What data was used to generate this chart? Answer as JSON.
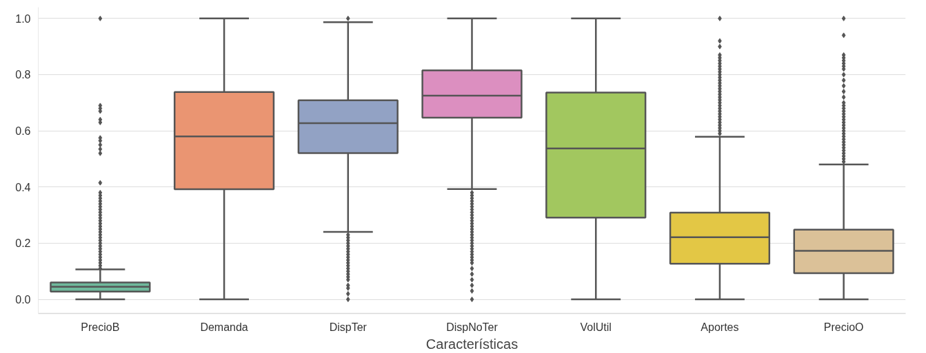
{
  "chart_data": {
    "type": "box",
    "xlabel": "Características",
    "categories": [
      "PrecioB",
      "Demanda",
      "DispTer",
      "DispNoTer",
      "VolUtil",
      "Aportes",
      "PrecioO"
    ],
    "colors": [
      "#6fb99c",
      "#ea9572",
      "#92a2c4",
      "#dc8fc0",
      "#a2c75f",
      "#e3c745",
      "#dbc198"
    ],
    "boxes": [
      {
        "low": 0.0,
        "q1": 0.028,
        "median": 0.045,
        "q3": 0.06,
        "high": 0.107,
        "outliers": [
          1.0,
          0.69,
          0.68,
          0.67,
          0.64,
          0.63,
          0.575,
          0.565,
          0.55,
          0.535,
          0.52,
          0.415,
          0.38,
          0.37,
          0.36,
          0.35,
          0.34,
          0.33,
          0.32,
          0.31,
          0.3,
          0.29,
          0.28,
          0.27,
          0.26,
          0.25,
          0.24,
          0.23,
          0.22,
          0.21,
          0.2,
          0.19,
          0.18,
          0.17,
          0.16,
          0.15,
          0.14,
          0.13,
          0.12,
          0.11
        ]
      },
      {
        "low": 0.0,
        "q1": 0.392,
        "median": 0.58,
        "q3": 0.738,
        "high": 1.0
      },
      {
        "low": 0.24,
        "q1": 0.521,
        "median": 0.627,
        "q3": 0.709,
        "high": 0.987,
        "outliers": [
          1.0,
          0.23,
          0.22,
          0.21,
          0.2,
          0.19,
          0.18,
          0.17,
          0.16,
          0.15,
          0.14,
          0.13,
          0.12,
          0.11,
          0.1,
          0.09,
          0.08,
          0.07,
          0.05,
          0.04,
          0.02,
          0.0
        ]
      },
      {
        "low": 0.393,
        "q1": 0.647,
        "median": 0.725,
        "q3": 0.815,
        "high": 1.0,
        "outliers": [
          0.38,
          0.37,
          0.36,
          0.35,
          0.34,
          0.33,
          0.32,
          0.31,
          0.3,
          0.29,
          0.28,
          0.27,
          0.26,
          0.25,
          0.24,
          0.23,
          0.22,
          0.21,
          0.2,
          0.19,
          0.18,
          0.17,
          0.16,
          0.15,
          0.14,
          0.13,
          0.11,
          0.09,
          0.07,
          0.05,
          0.03,
          0.0
        ]
      },
      {
        "low": 0.0,
        "q1": 0.291,
        "median": 0.537,
        "q3": 0.736,
        "high": 1.0
      },
      {
        "low": 0.0,
        "q1": 0.127,
        "median": 0.221,
        "q3": 0.309,
        "high": 0.579,
        "outliers": [
          1.0,
          0.92,
          0.9,
          0.87,
          0.86,
          0.85,
          0.84,
          0.83,
          0.82,
          0.81,
          0.8,
          0.79,
          0.78,
          0.77,
          0.76,
          0.75,
          0.74,
          0.73,
          0.72,
          0.71,
          0.7,
          0.69,
          0.68,
          0.67,
          0.66,
          0.65,
          0.64,
          0.63,
          0.62,
          0.61,
          0.6,
          0.59
        ]
      },
      {
        "low": 0.0,
        "q1": 0.093,
        "median": 0.173,
        "q3": 0.248,
        "high": 0.48,
        "outliers": [
          1.0,
          0.94,
          0.87,
          0.86,
          0.85,
          0.84,
          0.83,
          0.82,
          0.8,
          0.78,
          0.76,
          0.74,
          0.72,
          0.7,
          0.69,
          0.68,
          0.67,
          0.66,
          0.65,
          0.64,
          0.63,
          0.62,
          0.61,
          0.6,
          0.59,
          0.58,
          0.57,
          0.56,
          0.55,
          0.54,
          0.53,
          0.52,
          0.51,
          0.5,
          0.49
        ]
      }
    ],
    "ylim": [
      -0.05,
      1.04
    ],
    "yticks": [
      {
        "value": 0,
        "label": "0.0"
      },
      {
        "value": 0.2,
        "label": "0.2"
      },
      {
        "value": 0.4,
        "label": "0.4"
      },
      {
        "value": 0.6,
        "label": "0.6"
      },
      {
        "value": 0.8,
        "label": "0.8"
      },
      {
        "value": 1,
        "label": "1.0"
      }
    ],
    "grid": "y",
    "marker": "diamond"
  }
}
